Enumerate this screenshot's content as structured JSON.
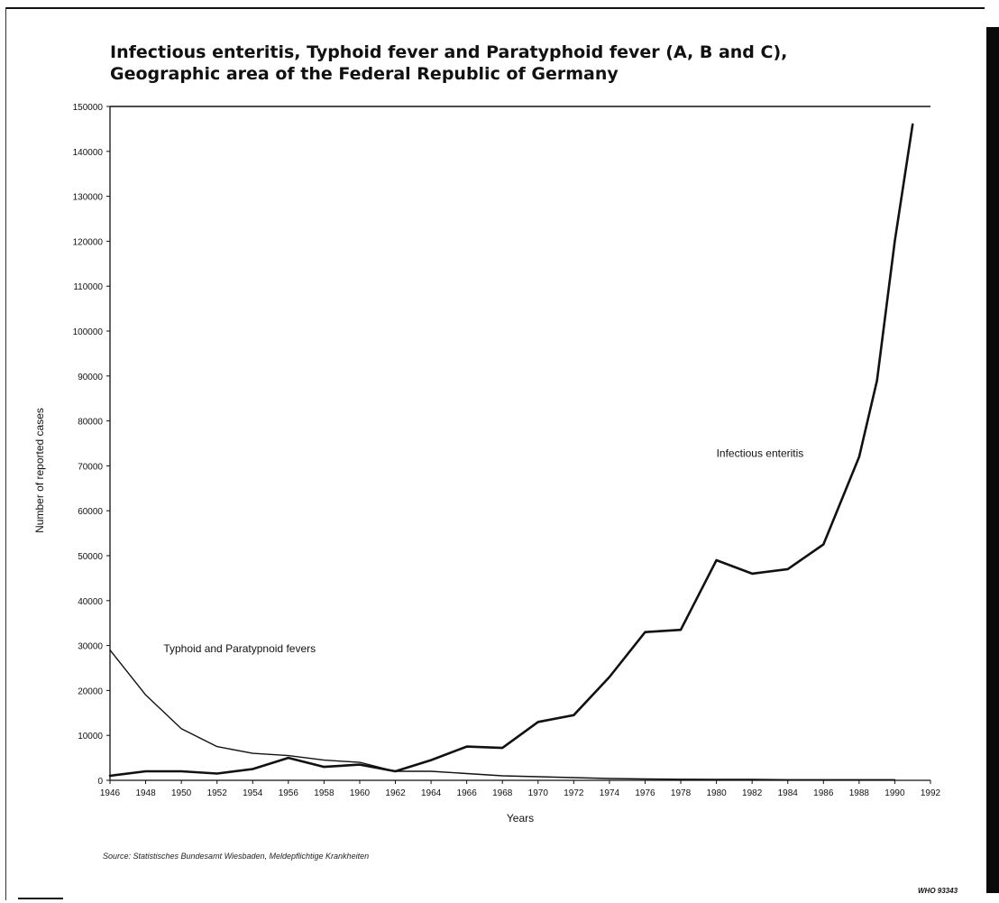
{
  "title_line1": "Infectious enteritis, Typhoid fever and Paratyphoid fever (A, B and C),",
  "title_line2": "Geographic area of the Federal Republic of Germany",
  "source": "Source: Statistisches Bundesamt Wiesbaden, Meldepflichtige Krankheiten",
  "footer_code": "WHO 93343",
  "chart_data": {
    "type": "line",
    "xlabel": "Years",
    "ylabel": "Number of reported cases",
    "xlim": [
      1946,
      1992
    ],
    "ylim": [
      0,
      150000
    ],
    "x_ticks": [
      "1946",
      "1948",
      "1950",
      "1952",
      "1954",
      "1956",
      "1958",
      "1960",
      "1962",
      "1964",
      "1966",
      "1968",
      "1970",
      "1972",
      "1974",
      "1976",
      "1978",
      "1980",
      "1982",
      "1984",
      "1986",
      "1988",
      "1990",
      "1992"
    ],
    "y_ticks": [
      "0",
      "10000",
      "20000",
      "30000",
      "40000",
      "50000",
      "60000",
      "70000",
      "80000",
      "90000",
      "100000",
      "110000",
      "120000",
      "130000",
      "140000",
      "150000"
    ],
    "grid": false,
    "legend": "none",
    "series": [
      {
        "name": "Infectious enteritis",
        "label_at": [
          1980,
          72000
        ],
        "color": "#111111",
        "stroke": "bold",
        "x": [
          1946,
          1948,
          1950,
          1952,
          1954,
          1956,
          1958,
          1960,
          1962,
          1964,
          1966,
          1968,
          1970,
          1972,
          1974,
          1976,
          1978,
          1980,
          1982,
          1984,
          1986,
          1988,
          1989,
          1990,
          1991
        ],
        "y": [
          1000,
          2000,
          2000,
          1500,
          2500,
          5000,
          3000,
          3500,
          2000,
          4500,
          7500,
          7200,
          13000,
          14500,
          23000,
          33000,
          33500,
          49000,
          46000,
          47000,
          52500,
          72000,
          89000,
          120000,
          146000
        ]
      },
      {
        "name": "Typhoid and Paratypnoid fevers",
        "label_at": [
          1949,
          28500
        ],
        "color": "#111111",
        "stroke": "thin",
        "x": [
          1946,
          1948,
          1950,
          1952,
          1954,
          1956,
          1958,
          1960,
          1962,
          1964,
          1966,
          1968,
          1970,
          1972,
          1974,
          1976,
          1978,
          1980,
          1982,
          1984,
          1986,
          1988,
          1990
        ],
        "y": [
          29000,
          19000,
          11500,
          7500,
          6000,
          5500,
          4500,
          4000,
          2000,
          2000,
          1500,
          1000,
          800,
          600,
          400,
          300,
          250,
          200,
          200,
          150,
          150,
          150,
          150
        ]
      }
    ]
  }
}
